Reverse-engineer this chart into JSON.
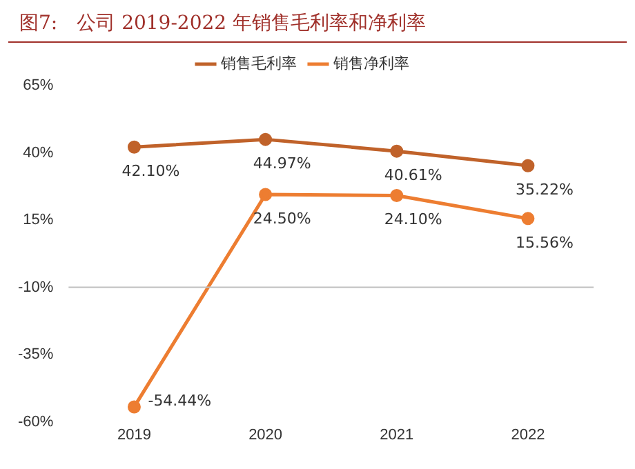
{
  "chart_data": {
    "type": "line",
    "title": "图7:　公司 2019-2022 年销售毛利率和净利率",
    "categories": [
      "2019",
      "2020",
      "2021",
      "2022"
    ],
    "series": [
      {
        "name": "销售毛利率",
        "color": "#c0622a",
        "values": [
          42.1,
          44.97,
          40.61,
          35.22
        ],
        "value_labels": [
          "42.10%",
          "44.97%",
          "40.61%",
          "35.22%"
        ]
      },
      {
        "name": "销售净利率",
        "color": "#ed7d31",
        "values": [
          -54.44,
          24.5,
          24.1,
          15.56
        ],
        "value_labels": [
          "-54.44%",
          "24.50%",
          "24.10%",
          "15.56%"
        ]
      }
    ],
    "ylim": [
      -60,
      65
    ],
    "yticks": [
      {
        "value": -60,
        "label": "-60%"
      },
      {
        "value": -35,
        "label": "-35%"
      },
      {
        "value": -10,
        "label": "-10%"
      },
      {
        "value": 15,
        "label": "15%"
      },
      {
        "value": 40,
        "label": "40%"
      },
      {
        "value": 65,
        "label": "65%"
      }
    ],
    "ref_lines": [
      {
        "axis": "y",
        "value": -10,
        "color": "#bfbfbf"
      }
    ],
    "legend": "top",
    "marker": "circle",
    "line_style": "solid"
  }
}
